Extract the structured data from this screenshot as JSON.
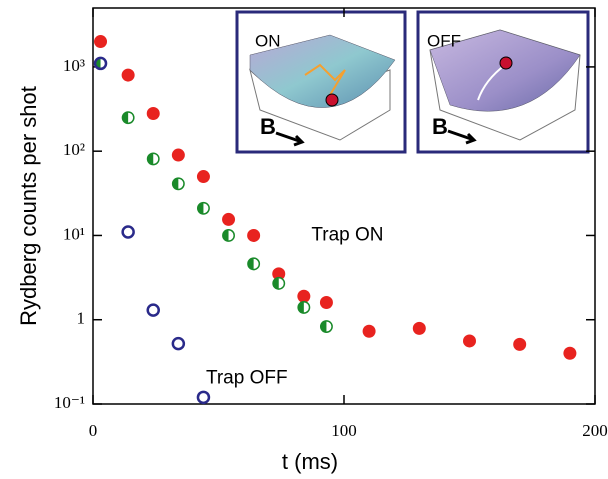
{
  "chart_data": {
    "type": "scatter",
    "xlabel": "t (ms)",
    "ylabel": "Rydberg counts per shot",
    "xlim": [
      0,
      200
    ],
    "xticks": [
      0,
      100,
      200
    ],
    "ylim": [
      0.1,
      5000
    ],
    "yscale": "log",
    "yticks": [
      {
        "value": 1000,
        "label": "10³"
      },
      {
        "value": 100,
        "label": "10²"
      },
      {
        "value": 10,
        "label": "10¹"
      },
      1,
      {
        "value": 0.1,
        "label": "10⁻¹"
      }
    ],
    "annotations": [
      {
        "text": "Trap ON",
        "x": 87,
        "y": 10,
        "color": "#e8231f"
      },
      {
        "text": "Trap OFF",
        "x": 45,
        "y": 0.2,
        "color": "#2a2a8a"
      }
    ],
    "insets": [
      {
        "label": "ON",
        "label_color": "#e8231f",
        "field": "B"
      },
      {
        "label": "OFF",
        "label_color": "#2a2a8a",
        "field": "B"
      }
    ],
    "series": [
      {
        "color": "#e8231f",
        "marker": "filled",
        "x": [
          3,
          14,
          24,
          34,
          44,
          54,
          64,
          74,
          84,
          93,
          110,
          130,
          150,
          170,
          190
        ],
        "values": [
          2000,
          800,
          280,
          90,
          50,
          15.5,
          10,
          3.5,
          1.9,
          1.6,
          0.73,
          0.79,
          0.56,
          0.51,
          0.4
        ]
      },
      {
        "color": "#1a8a2a",
        "marker": "half",
        "x": [
          3,
          14,
          24,
          34,
          44,
          54,
          64,
          74,
          84,
          93
        ],
        "values": [
          1100,
          250,
          81,
          41,
          21,
          10,
          4.6,
          2.7,
          1.4,
          0.83
        ]
      },
      {
        "color": "#2a2a8a",
        "marker": "open",
        "x": [
          3,
          14,
          24,
          34,
          44
        ],
        "values": [
          1100,
          11,
          1.3,
          0.52,
          0.12
        ]
      }
    ]
  }
}
